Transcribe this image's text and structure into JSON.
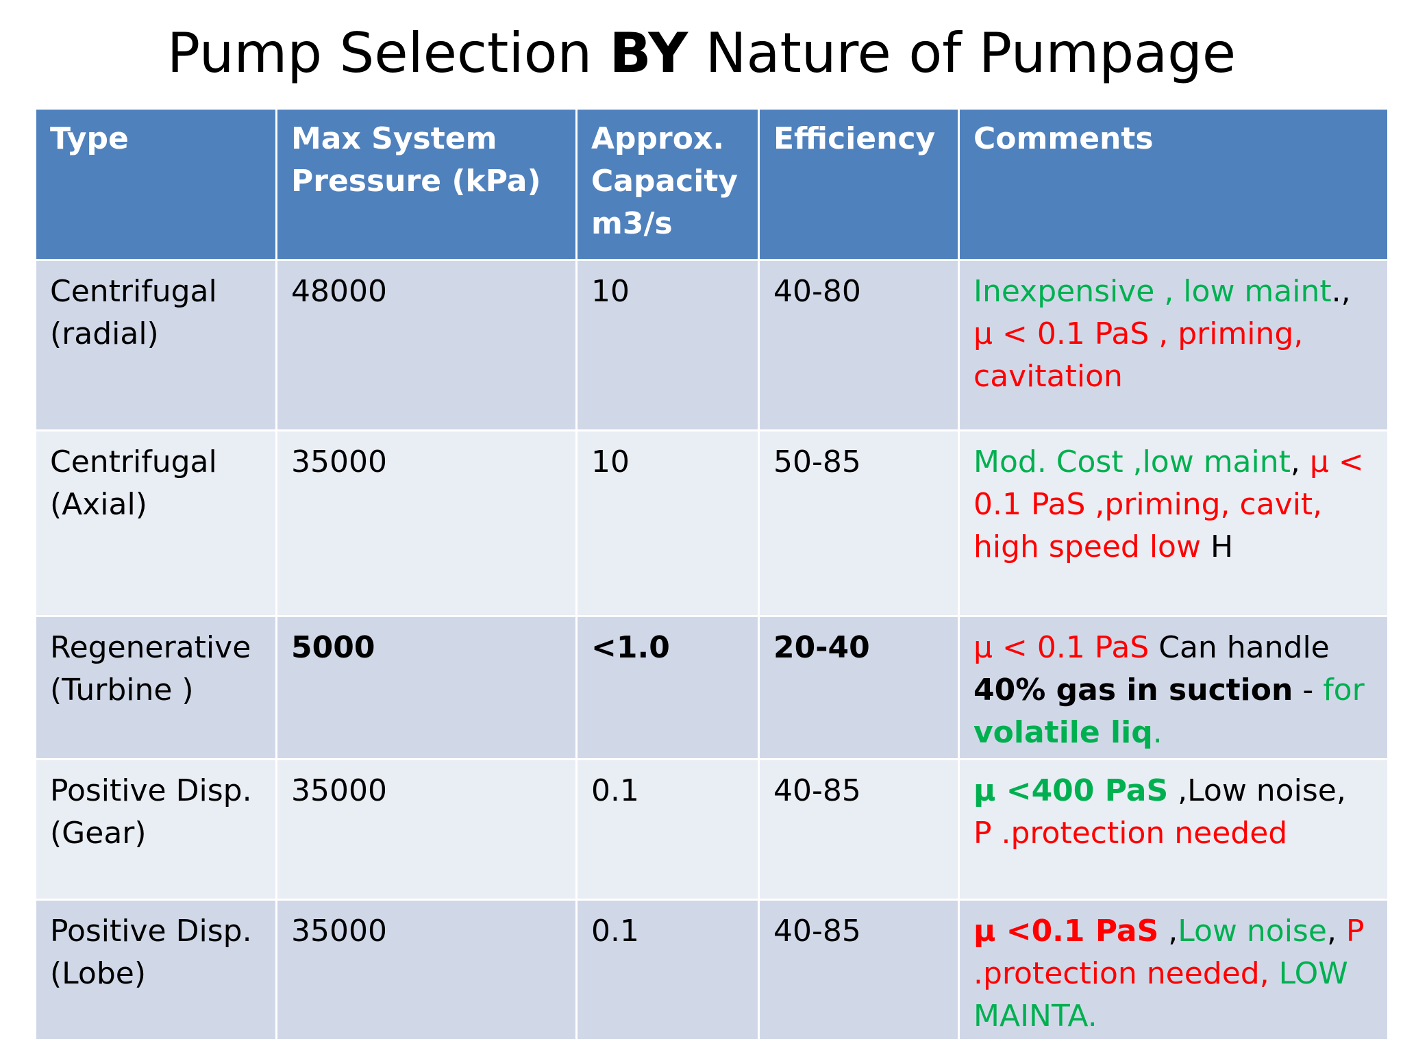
{
  "title": {
    "part1": "Pump Selection ",
    "part2": "BY",
    "part3": " Nature of Pumpage"
  },
  "colors": {
    "header_bg": "#4f81bd",
    "row_dark": "#d0d8e8",
    "row_light": "#e9edf4",
    "green": "#00b050",
    "red": "#ff0000"
  },
  "table": {
    "headers": {
      "type": "Type",
      "pressure": "Max  System Pressure (kPa)",
      "capacity": "Approx. Capacity m3/s",
      "efficiency": "Efficiency",
      "comments": "Comments"
    },
    "rows": [
      {
        "type": "Centrifugal (radial)",
        "pressure": "48000",
        "capacity": "10",
        "efficiency": "40-80",
        "comments": [
          {
            "text": "Inexpensive , low maint",
            "color": "green"
          },
          {
            "text": "., ",
            "color": "black"
          },
          {
            "text": "µ < 0.1 PaS , priming, cavitation",
            "color": "red"
          }
        ]
      },
      {
        "type": "Centrifugal (Axial)",
        "pressure": "35000",
        "capacity": "10",
        "efficiency": "50-85",
        "comments": [
          {
            "text": "Mod. Cost ,low maint",
            "color": "green"
          },
          {
            "text": ", ",
            "color": "black"
          },
          {
            "text": "µ < 0.1 PaS ,priming, cavit, high speed  low",
            "color": "red"
          },
          {
            "text": " H",
            "color": "black"
          }
        ]
      },
      {
        "type": "Regenerative (Turbine )",
        "pressure": "5000",
        "capacity": "<1.0",
        "efficiency": "20-40",
        "bold_values": true,
        "comments": [
          {
            "text": "µ < 0.1 PaS",
            "color": "red"
          },
          {
            "text": "  Can handle ",
            "color": "black"
          },
          {
            "text": "40% gas in suction",
            "color": "black",
            "bold": true
          },
          {
            "text": " -  ",
            "color": "black"
          },
          {
            "text": "for ",
            "color": "green"
          },
          {
            "text": "volatile liq",
            "color": "green",
            "bold": true
          },
          {
            "text": ".",
            "color": "green"
          }
        ]
      },
      {
        "type": "Positive Disp. (Gear)",
        "pressure": "35000",
        "capacity": "0.1",
        "efficiency": "40-85",
        "comments": [
          {
            "text": "µ <400 PaS",
            "color": "green",
            "bold": true
          },
          {
            "text": " ,Low noise, ",
            "color": "black"
          },
          {
            "text": "P .protection needed",
            "color": "red"
          }
        ]
      },
      {
        "type": "Positive Disp.(Lobe)",
        "pressure": "35000",
        "capacity": "0.1",
        "efficiency": "40-85",
        "comments": [
          {
            "text": "µ <0.1 PaS",
            "color": "red",
            "bold": true
          },
          {
            "text": " ,",
            "color": "black"
          },
          {
            "text": "Low noise",
            "color": "green"
          },
          {
            "text": ", ",
            "color": "black"
          },
          {
            "text": "P .protection needed, ",
            "color": "red"
          },
          {
            "text": "LOW MAINTA.",
            "color": "green"
          }
        ]
      }
    ]
  }
}
